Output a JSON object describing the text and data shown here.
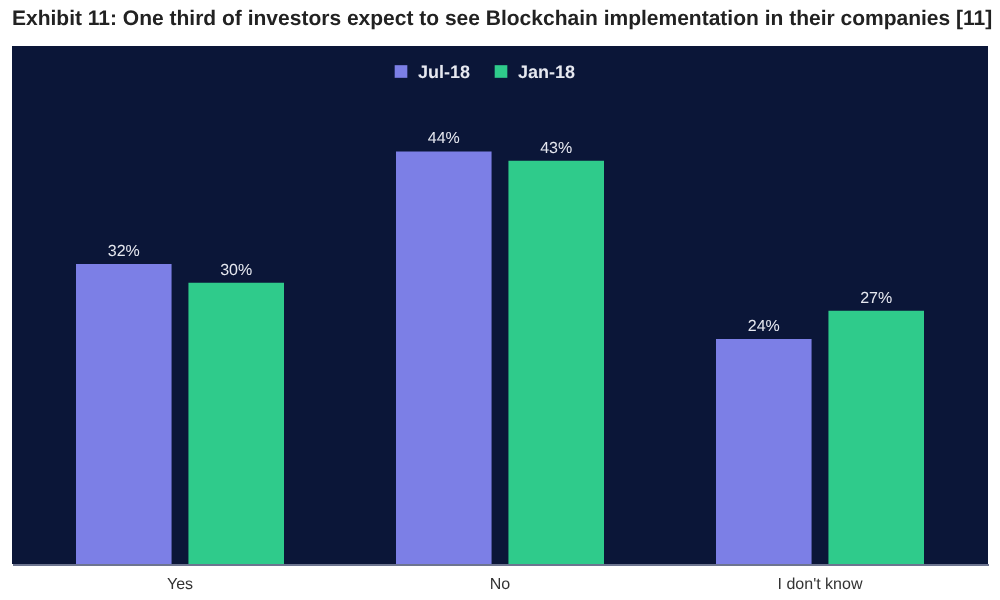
{
  "chart_data": {
    "type": "bar",
    "title": "Exhibit 11: One third of investors expect to see Blockchain implementation in their companies [11]",
    "categories": [
      "Yes",
      "No",
      "I don't know"
    ],
    "series": [
      {
        "name": "Jul-18",
        "color": "#7c7fe6",
        "values": [
          32,
          44,
          24
        ],
        "value_labels": [
          "32%",
          "44%",
          "24%"
        ]
      },
      {
        "name": "Jan-18",
        "color": "#2fcb8b",
        "values": [
          30,
          43,
          27
        ],
        "value_labels": [
          "30%",
          "43%",
          "27%"
        ]
      }
    ],
    "legend": "top"
  }
}
